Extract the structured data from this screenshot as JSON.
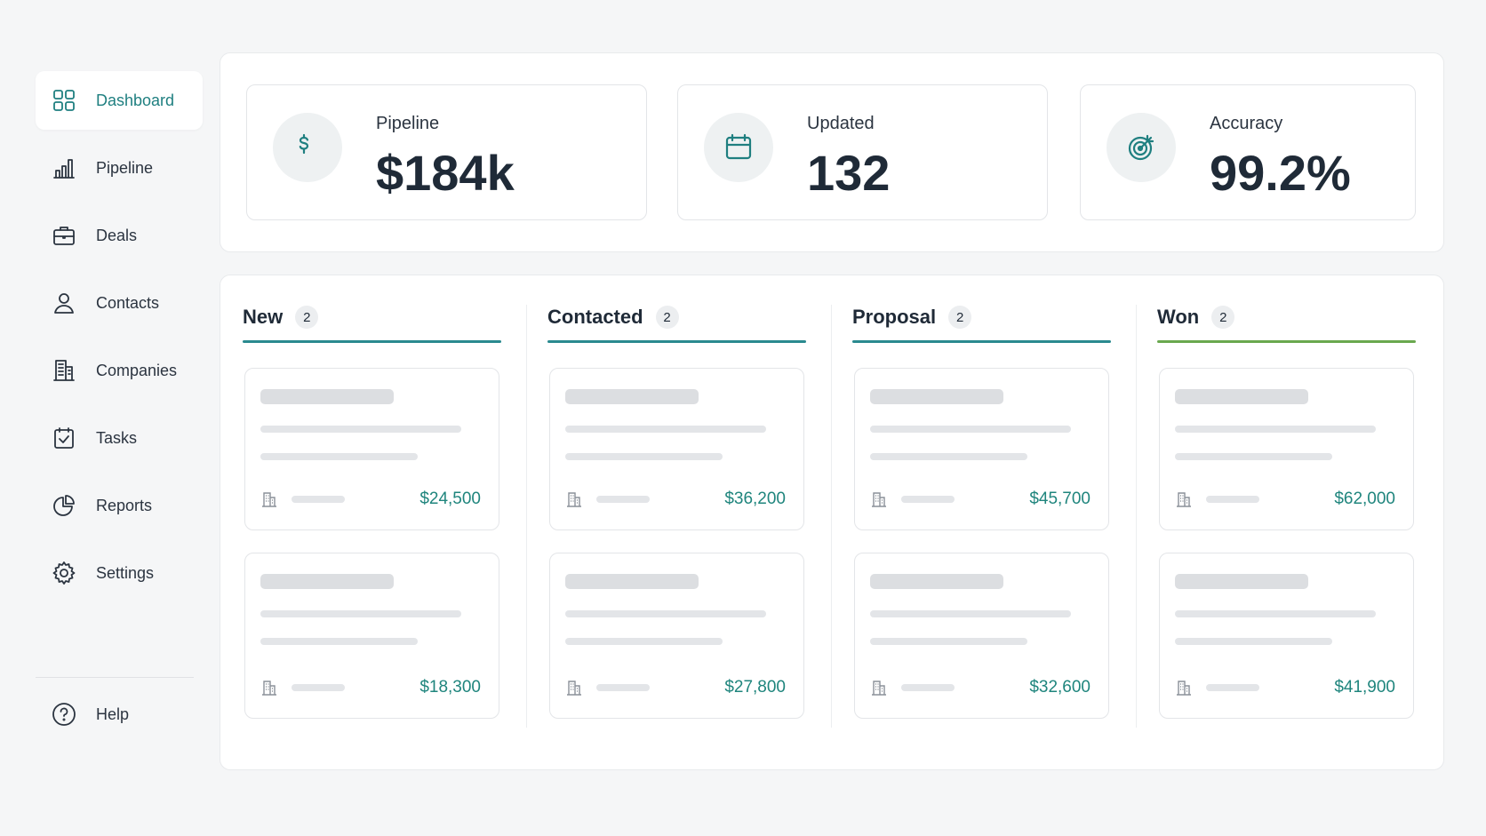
{
  "sidebar": {
    "nav": [
      "Dashboard",
      "Pipeline",
      "Deals",
      "Contacts",
      "Companies",
      "Tasks",
      "Reports",
      "Settings"
    ],
    "help": "Help"
  },
  "stats": [
    {
      "label": "Pipeline",
      "value": "$184k"
    },
    {
      "label": "Updated",
      "value": "132"
    },
    {
      "label": "Accuracy",
      "value": "99.2%"
    }
  ],
  "board": {
    "columns": [
      {
        "name": "New",
        "count": 2,
        "cards": [
          "$24,500",
          "$18,300"
        ]
      },
      {
        "name": "Contacted",
        "count": 2,
        "cards": [
          "$36,200",
          "$27,800"
        ]
      },
      {
        "name": "Proposal",
        "count": 2,
        "cards": [
          "$45,700",
          "$32,600"
        ]
      },
      {
        "name": "Won",
        "count": 2,
        "cards": [
          "$62,000",
          "$41,900"
        ]
      }
    ]
  }
}
